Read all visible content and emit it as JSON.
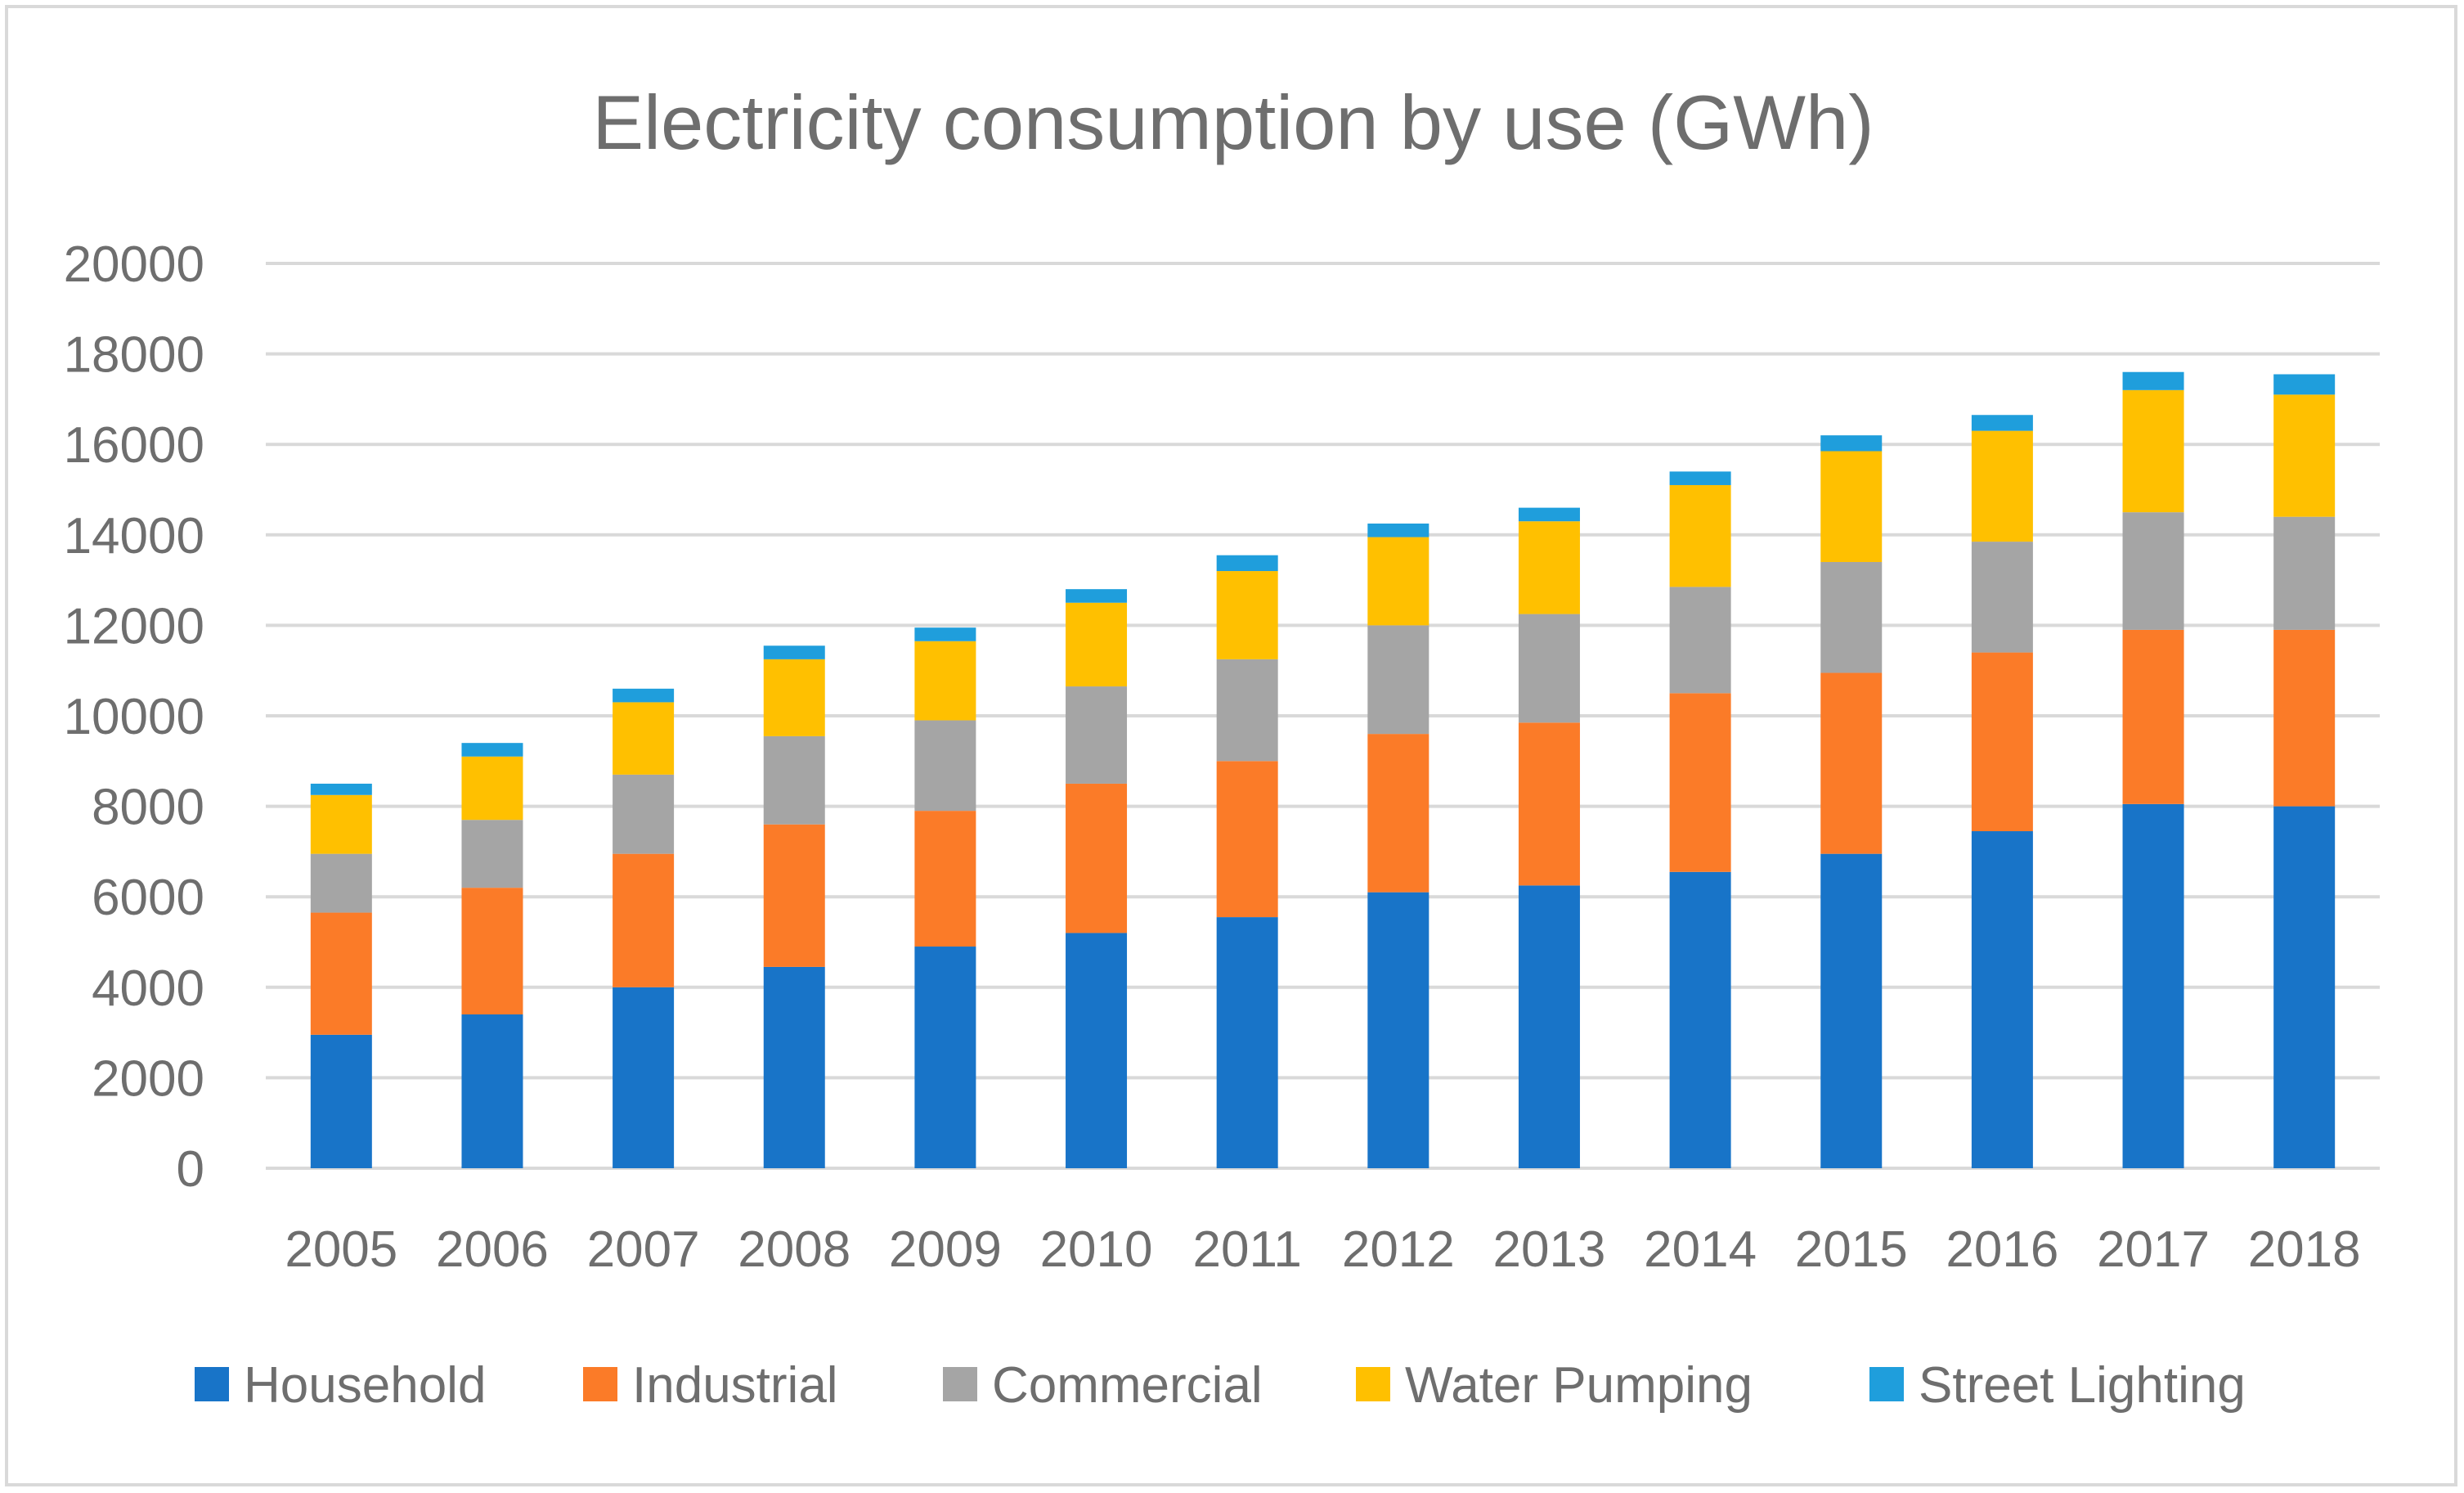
{
  "chart_data": {
    "type": "bar",
    "stacked": true,
    "title": "Electricity consumption by use (GWh)",
    "xlabel": "",
    "ylabel": "",
    "ylim": [
      0,
      20000
    ],
    "yticks": [
      "0",
      "2000",
      "4000",
      "6000",
      "8000",
      "10000",
      "12000",
      "14000",
      "16000",
      "18000",
      "20000"
    ],
    "grid": true,
    "legend_position": "bottom",
    "categories": [
      "2005",
      "2006",
      "2007",
      "2008",
      "2009",
      "2010",
      "2011",
      "2012",
      "2013",
      "2014",
      "2015",
      "2016",
      "2017",
      "2018"
    ],
    "series": [
      {
        "name": "Household",
        "color": "#1874c8",
        "values": [
          2950,
          3400,
          4000,
          4450,
          4900,
          5200,
          5550,
          6100,
          6250,
          6550,
          6950,
          7450,
          8050,
          8000
        ]
      },
      {
        "name": "Industrial",
        "color": "#fb7b28",
        "values": [
          2700,
          2800,
          2950,
          3150,
          3000,
          3300,
          3450,
          3500,
          3600,
          3950,
          4000,
          3950,
          3850,
          3900
        ]
      },
      {
        "name": "Commercial",
        "color": "#a5a5a5",
        "values": [
          1300,
          1500,
          1750,
          1950,
          2000,
          2150,
          2250,
          2400,
          2400,
          2350,
          2450,
          2450,
          2600,
          2500
        ]
      },
      {
        "name": "Water Pumping",
        "color": "#ffc000",
        "values": [
          1300,
          1400,
          1600,
          1700,
          1750,
          1850,
          1950,
          1950,
          2050,
          2250,
          2450,
          2450,
          2700,
          2700
        ]
      },
      {
        "name": "Street Lighting",
        "color": "#1f9edc",
        "values": [
          250,
          300,
          300,
          300,
          300,
          300,
          350,
          300,
          300,
          300,
          350,
          350,
          400,
          450
        ]
      }
    ]
  }
}
